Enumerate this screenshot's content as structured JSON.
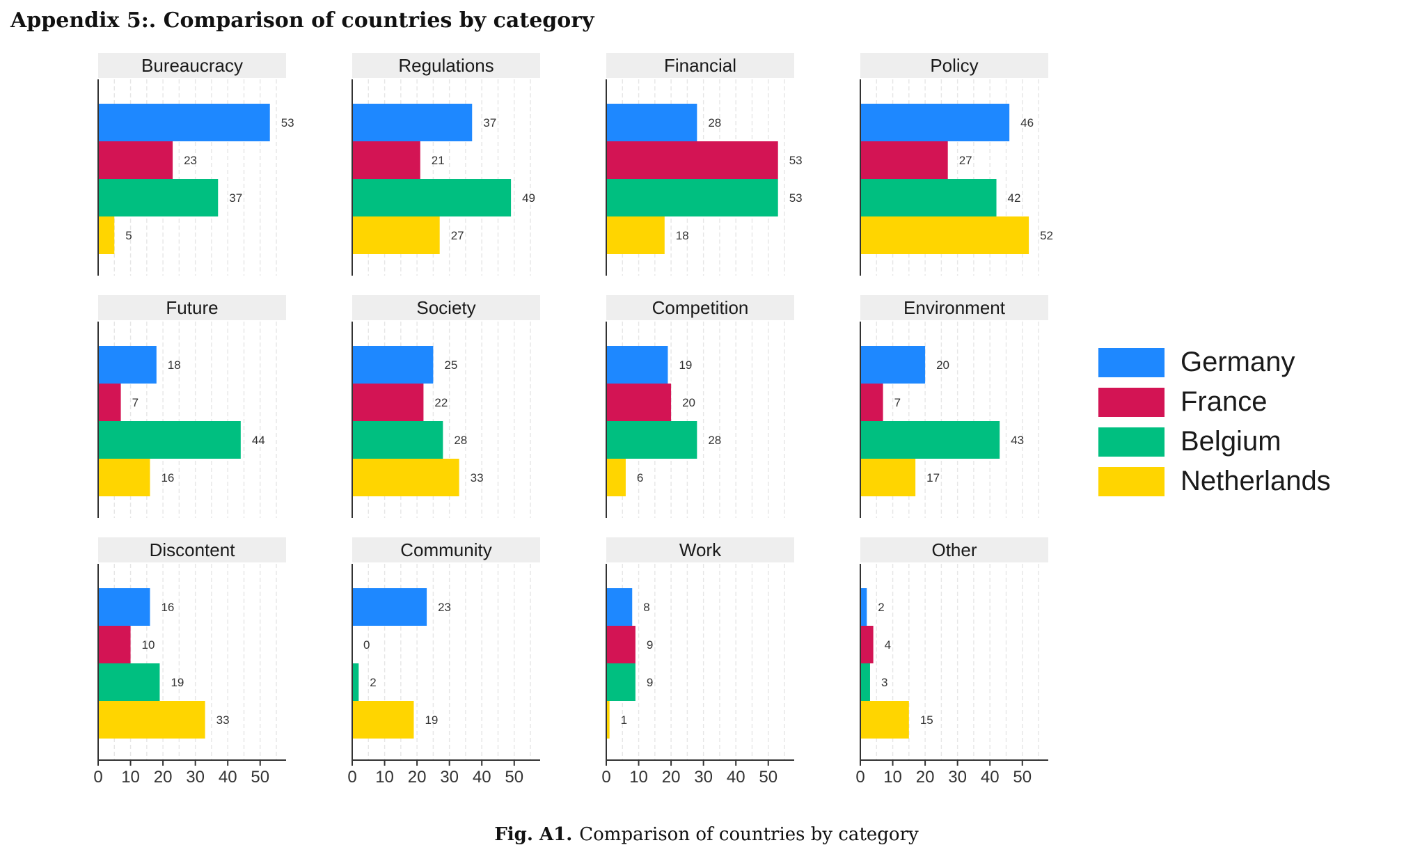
{
  "heading": "Appendix 5:.  Comparison of countries by category",
  "caption": {
    "label": "Fig. A1.",
    "text": "Comparison of countries by category"
  },
  "chart_data": {
    "type": "bar",
    "orientation": "horizontal",
    "layout": "facet-grid-3x4",
    "series": [
      {
        "name": "Germany",
        "color": "#1e88ff"
      },
      {
        "name": "France",
        "color": "#d31454"
      },
      {
        "name": "Belgium",
        "color": "#00bf80"
      },
      {
        "name": "Netherlands",
        "color": "#ffd500"
      }
    ],
    "panels": [
      {
        "title": "Bureaucracy",
        "values": [
          53,
          23,
          37,
          5
        ]
      },
      {
        "title": "Regulations",
        "values": [
          37,
          21,
          49,
          27
        ]
      },
      {
        "title": "Financial",
        "values": [
          28,
          53,
          53,
          18
        ]
      },
      {
        "title": "Policy",
        "values": [
          46,
          27,
          42,
          52
        ]
      },
      {
        "title": "Future",
        "values": [
          18,
          7,
          44,
          16
        ]
      },
      {
        "title": "Society",
        "values": [
          25,
          22,
          28,
          33
        ]
      },
      {
        "title": "Competition",
        "values": [
          19,
          20,
          28,
          6
        ]
      },
      {
        "title": "Environment",
        "values": [
          20,
          7,
          43,
          17
        ]
      },
      {
        "title": "Discontent",
        "values": [
          16,
          10,
          19,
          33
        ]
      },
      {
        "title": "Community",
        "values": [
          23,
          0,
          2,
          19
        ]
      },
      {
        "title": "Work",
        "values": [
          8,
          9,
          9,
          1
        ]
      },
      {
        "title": "Other",
        "values": [
          2,
          4,
          3,
          15
        ]
      }
    ],
    "xlim": [
      0,
      58
    ],
    "xticks": [
      0,
      10,
      20,
      30,
      40,
      50
    ],
    "grid": "vertical dashed",
    "legend": "right"
  }
}
